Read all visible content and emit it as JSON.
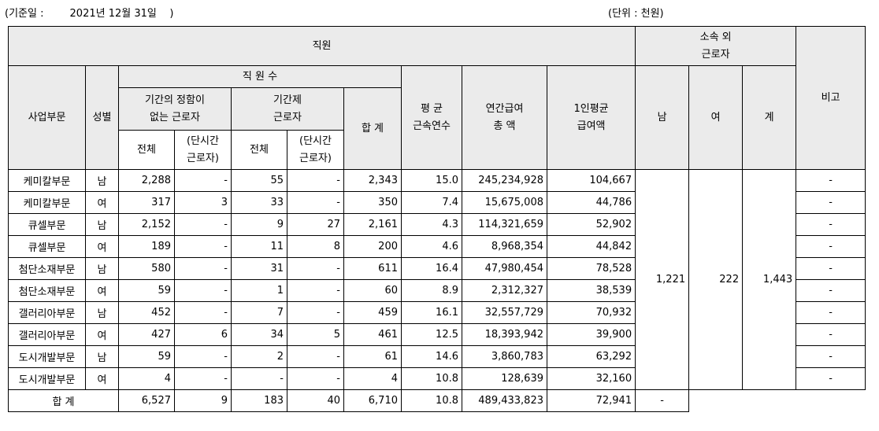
{
  "basis": "(기준일 :        2021년 12월 31일    )",
  "unit": "(단위 : 천원)",
  "headers": {
    "staff": "직원",
    "external_line1": "소속 외",
    "external_line2": "근로자",
    "note": "비고",
    "division": "사업부문",
    "gender": "성별",
    "headcount": "직 원 수",
    "indef_line1": "기간의 정함이",
    "indef_line2": "없는 근로자",
    "fixed_line1": "기간제",
    "fixed_line2": "근로자",
    "total": "합 계",
    "tenure_line1": "평 균",
    "tenure_line2": "근속연수",
    "pay_line1": "연간급여",
    "pay_line2": "총 액",
    "avg_line1": "1인평균",
    "avg_line2": "급여액",
    "male": "남",
    "female": "여",
    "sum": "계",
    "all": "전체",
    "parttime_line1": "(단시간",
    "parttime_line2": "근로자)"
  },
  "rows": [
    {
      "division": "케미칼부문",
      "gender": "남",
      "indef_all": "2,288",
      "indef_pt": "-",
      "fixed_all": "55",
      "fixed_pt": "-",
      "total": "2,343",
      "tenure": "15.0",
      "pay": "245,234,928",
      "avg": "104,667",
      "note": "-"
    },
    {
      "division": "케미칼부문",
      "gender": "여",
      "indef_all": "317",
      "indef_pt": "3",
      "fixed_all": "33",
      "fixed_pt": "-",
      "total": "350",
      "tenure": "7.4",
      "pay": "15,675,008",
      "avg": "44,786",
      "note": "-"
    },
    {
      "division": "큐셀부문",
      "gender": "남",
      "indef_all": "2,152",
      "indef_pt": "-",
      "fixed_all": "9",
      "fixed_pt": "27",
      "total": "2,161",
      "tenure": "4.3",
      "pay": "114,321,659",
      "avg": "52,902",
      "note": "-"
    },
    {
      "division": "큐셀부문",
      "gender": "여",
      "indef_all": "189",
      "indef_pt": "-",
      "fixed_all": "11",
      "fixed_pt": "8",
      "total": "200",
      "tenure": "4.6",
      "pay": "8,968,354",
      "avg": "44,842",
      "note": "-"
    },
    {
      "division": "첨단소재부문",
      "gender": "남",
      "indef_all": "580",
      "indef_pt": "-",
      "fixed_all": "31",
      "fixed_pt": "-",
      "total": "611",
      "tenure": "16.4",
      "pay": "47,980,454",
      "avg": "78,528",
      "note": "-"
    },
    {
      "division": "첨단소재부문",
      "gender": "여",
      "indef_all": "59",
      "indef_pt": "-",
      "fixed_all": "1",
      "fixed_pt": "-",
      "total": "60",
      "tenure": "8.9",
      "pay": "2,312,327",
      "avg": "38,539",
      "note": "-"
    },
    {
      "division": "갤러리아부문",
      "gender": "남",
      "indef_all": "452",
      "indef_pt": "-",
      "fixed_all": "7",
      "fixed_pt": "-",
      "total": "459",
      "tenure": "16.1",
      "pay": "32,557,729",
      "avg": "70,932",
      "note": "-"
    },
    {
      "division": "갤러리아부문",
      "gender": "여",
      "indef_all": "427",
      "indef_pt": "6",
      "fixed_all": "34",
      "fixed_pt": "5",
      "total": "461",
      "tenure": "12.5",
      "pay": "18,393,942",
      "avg": "39,900",
      "note": "-"
    },
    {
      "division": "도시개발부문",
      "gender": "남",
      "indef_all": "59",
      "indef_pt": "-",
      "fixed_all": "2",
      "fixed_pt": "-",
      "total": "61",
      "tenure": "14.6",
      "pay": "3,860,783",
      "avg": "63,292",
      "note": "-"
    },
    {
      "division": "도시개발부문",
      "gender": "여",
      "indef_all": "4",
      "indef_pt": "-",
      "fixed_all": "-",
      "fixed_pt": "-",
      "total": "4",
      "tenure": "10.8",
      "pay": "128,639",
      "avg": "32,160",
      "note": "-"
    }
  ],
  "external": {
    "male": "1,221",
    "female": "222",
    "total": "1,443"
  },
  "totals": {
    "label": "합 계",
    "indef_all": "6,527",
    "indef_pt": "9",
    "fixed_all": "183",
    "fixed_pt": "40",
    "total": "6,710",
    "tenure": "10.8",
    "pay": "489,433,823",
    "avg": "72,941",
    "note": "-"
  }
}
